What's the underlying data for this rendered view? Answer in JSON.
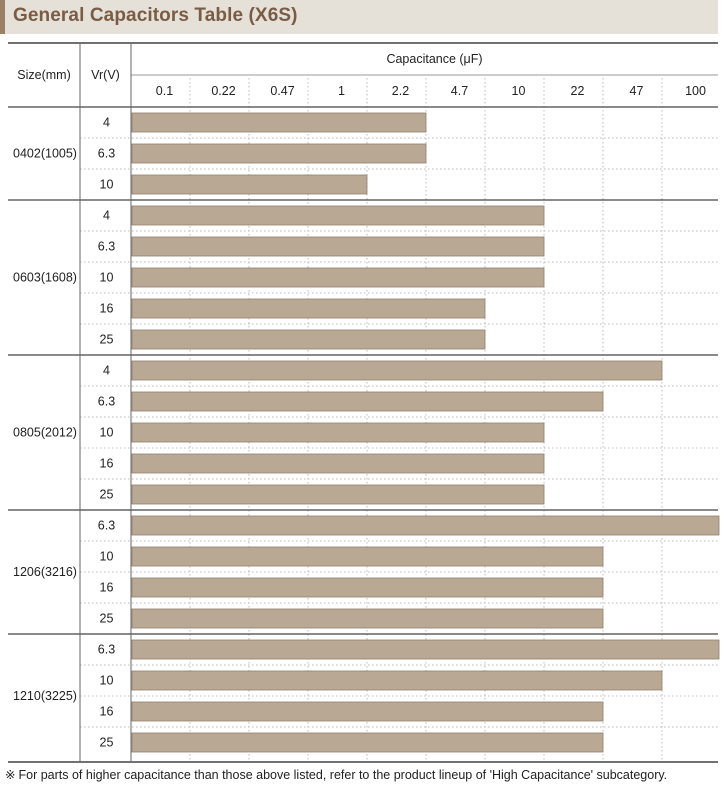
{
  "header": {
    "title": "General Capacitors Table (X6S)"
  },
  "footnote": {
    "mark": "※",
    "text": "For parts of higher capacitance than those above listed, refer to the product lineup of 'High Capacitance' subcategory."
  },
  "colors": {
    "bar": "#b9a994",
    "title_bg": "#e6e1d8",
    "title_accent": "#9b8066",
    "title_text": "#7a5c45"
  },
  "chart_data": {
    "type": "bar",
    "orientation": "horizontal",
    "title": "General Capacitors Table (X6S)",
    "column_headers": {
      "size": "Size(mm)",
      "voltage": "Vr(V)",
      "capacitance": "Capacitance (μF)"
    },
    "categories": [
      "0.1",
      "0.22",
      "0.47",
      "1",
      "2.2",
      "4.7",
      "10",
      "22",
      "47",
      "100"
    ],
    "groups": [
      {
        "size": "0402(1005)",
        "rows": [
          {
            "voltage": "4",
            "max_index": 4
          },
          {
            "voltage": "6.3",
            "max_index": 4
          },
          {
            "voltage": "10",
            "max_index": 3
          }
        ]
      },
      {
        "size": "0603(1608)",
        "rows": [
          {
            "voltage": "4",
            "max_index": 6
          },
          {
            "voltage": "6.3",
            "max_index": 6
          },
          {
            "voltage": "10",
            "max_index": 6
          },
          {
            "voltage": "16",
            "max_index": 5
          },
          {
            "voltage": "25",
            "max_index": 5
          }
        ]
      },
      {
        "size": "0805(2012)",
        "rows": [
          {
            "voltage": "4",
            "max_index": 8
          },
          {
            "voltage": "6.3",
            "max_index": 7
          },
          {
            "voltage": "10",
            "max_index": 6
          },
          {
            "voltage": "16",
            "max_index": 6
          },
          {
            "voltage": "25",
            "max_index": 6
          }
        ]
      },
      {
        "size": "1206(3216)",
        "rows": [
          {
            "voltage": "6.3",
            "max_index": 9
          },
          {
            "voltage": "10",
            "max_index": 7
          },
          {
            "voltage": "16",
            "max_index": 7
          },
          {
            "voltage": "25",
            "max_index": 7
          }
        ]
      },
      {
        "size": "1210(3225)",
        "rows": [
          {
            "voltage": "6.3",
            "max_index": 9
          },
          {
            "voltage": "10",
            "max_index": 8
          },
          {
            "voltage": "16",
            "max_index": 7
          },
          {
            "voltage": "25",
            "max_index": 7
          }
        ]
      }
    ]
  }
}
